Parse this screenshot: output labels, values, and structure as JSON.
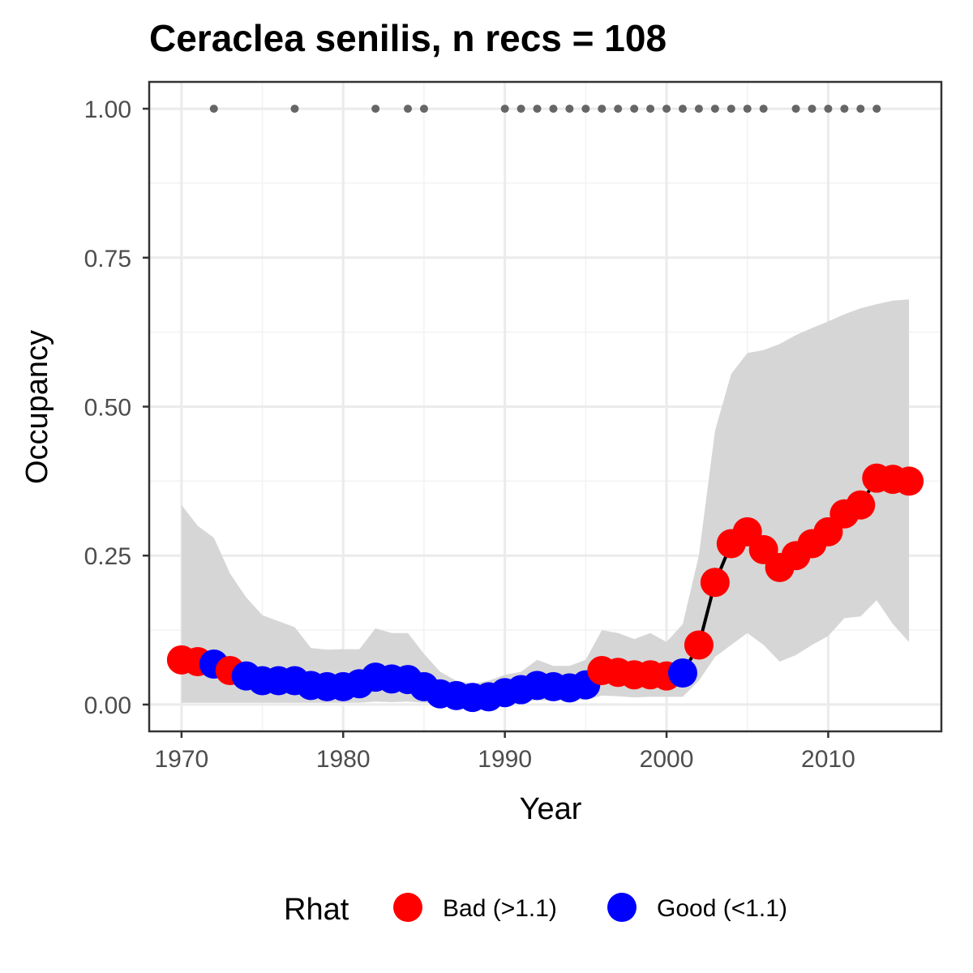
{
  "chart_data": {
    "type": "line",
    "title": "Ceraclea senilis, n recs = 108",
    "xlabel": "Year",
    "ylabel": "Occupancy",
    "xlim": [
      1968,
      2017
    ],
    "ylim": [
      -0.045,
      1.045
    ],
    "x_ticks": [
      1970,
      1980,
      1990,
      2000,
      2010
    ],
    "y_ticks": [
      0.0,
      0.25,
      0.5,
      0.75,
      1.0
    ],
    "y_tick_labels": [
      "0.00",
      "0.25",
      "0.50",
      "0.75",
      "1.00"
    ],
    "grid": true,
    "legend": {
      "title": "Rhat",
      "position": "bottom",
      "entries": [
        {
          "label": "Bad (>1.1)",
          "color": "#ff0000"
        },
        {
          "label": "Good (<1.1)",
          "color": "#0000ff"
        }
      ]
    },
    "colors": {
      "bad": "#ff0000",
      "good": "#0000ff",
      "ribbon": "#d6d6d6",
      "line": "#000000",
      "record": "#666666"
    },
    "records_y": 1.0,
    "record_years": [
      1972,
      1977,
      1982,
      1984,
      1985,
      1990,
      1991,
      1992,
      1993,
      1994,
      1995,
      1996,
      1997,
      1998,
      1999,
      2000,
      2001,
      2002,
      2003,
      2004,
      2005,
      2006,
      2008,
      2009,
      2010,
      2011,
      2012,
      2013
    ],
    "series": [
      {
        "x": [
          1970,
          1971,
          1972,
          1973,
          1974,
          1975,
          1976,
          1977,
          1978,
          1979,
          1980,
          1981,
          1982,
          1983,
          1984,
          1985,
          1986,
          1987,
          1988,
          1989,
          1990,
          1991,
          1992,
          1993,
          1994,
          1995,
          1996,
          1997,
          1998,
          1999,
          2000,
          2001,
          2002,
          2003,
          2004,
          2005,
          2006,
          2007,
          2008,
          2009,
          2010,
          2011,
          2012,
          2013,
          2014,
          2015
        ],
        "y": [
          0.075,
          0.072,
          0.068,
          0.057,
          0.048,
          0.04,
          0.04,
          0.04,
          0.032,
          0.03,
          0.03,
          0.035,
          0.046,
          0.043,
          0.042,
          0.03,
          0.018,
          0.015,
          0.012,
          0.013,
          0.02,
          0.025,
          0.032,
          0.03,
          0.028,
          0.033,
          0.057,
          0.054,
          0.05,
          0.05,
          0.048,
          0.053,
          0.1,
          0.205,
          0.27,
          0.29,
          0.26,
          0.23,
          0.25,
          0.27,
          0.29,
          0.32,
          0.335,
          0.38,
          0.378,
          0.375
        ],
        "rhat": [
          "Bad",
          "Bad",
          "Good",
          "Bad",
          "Good",
          "Good",
          "Good",
          "Good",
          "Good",
          "Good",
          "Good",
          "Good",
          "Good",
          "Good",
          "Good",
          "Good",
          "Good",
          "Good",
          "Good",
          "Good",
          "Good",
          "Good",
          "Good",
          "Good",
          "Good",
          "Good",
          "Bad",
          "Bad",
          "Bad",
          "Bad",
          "Bad",
          "Good",
          "Bad",
          "Bad",
          "Bad",
          "Bad",
          "Bad",
          "Bad",
          "Bad",
          "Bad",
          "Bad",
          "Bad",
          "Bad",
          "Bad",
          "Bad",
          "Bad"
        ],
        "upper": [
          0.335,
          0.3,
          0.28,
          0.22,
          0.18,
          0.15,
          0.14,
          0.13,
          0.095,
          0.092,
          0.093,
          0.093,
          0.128,
          0.12,
          0.12,
          0.085,
          0.055,
          0.04,
          0.035,
          0.04,
          0.05,
          0.055,
          0.075,
          0.065,
          0.065,
          0.075,
          0.125,
          0.12,
          0.11,
          0.12,
          0.105,
          0.135,
          0.25,
          0.46,
          0.555,
          0.59,
          0.595,
          0.605,
          0.62,
          0.632,
          0.643,
          0.655,
          0.665,
          0.672,
          0.678,
          0.68
        ],
        "lower": [
          0.003,
          0.003,
          0.003,
          0.003,
          0.003,
          0.003,
          0.003,
          0.003,
          0.003,
          0.003,
          0.003,
          0.003,
          0.005,
          0.004,
          0.005,
          0.003,
          0.003,
          0.002,
          0.002,
          0.002,
          0.003,
          0.005,
          0.007,
          0.007,
          0.007,
          0.008,
          0.015,
          0.014,
          0.012,
          0.013,
          0.013,
          0.013,
          0.04,
          0.08,
          0.1,
          0.12,
          0.1,
          0.072,
          0.083,
          0.1,
          0.115,
          0.145,
          0.148,
          0.175,
          0.135,
          0.105
        ]
      }
    ]
  }
}
